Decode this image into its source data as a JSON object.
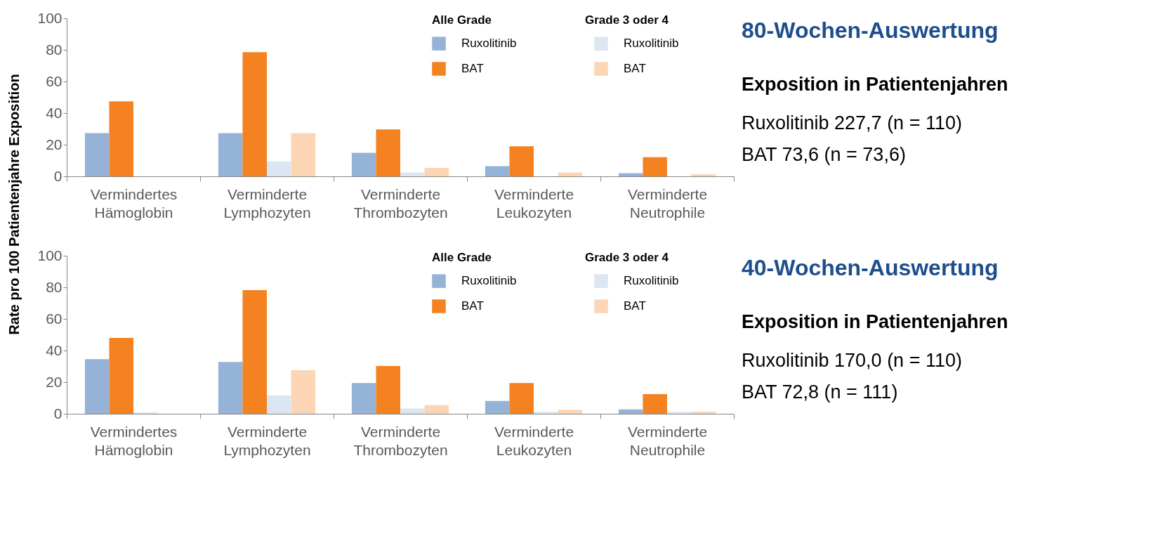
{
  "chart_data": [
    {
      "type": "bar",
      "title": "80-Wochen-Auswertung",
      "subtitle": "Exposition in Patientenjahren",
      "ylabel": "Rate pro 100 Patientenjahre Exposition",
      "categories": [
        "Vermindertes\nHämoglobin",
        "Verminderte\nLymphozyten",
        "Verminderte\nThrombozyten",
        "Verminderte\nLeukozyten",
        "Verminderte\nNeutrophile"
      ],
      "series": [
        {
          "name": "Ruxolitinib",
          "color": "#95b3d7",
          "values": [
            27.3,
            27.3,
            14.9,
            6.4,
            2.0
          ]
        },
        {
          "name": "BAT",
          "color": "#f58220",
          "values": [
            47.4,
            78.6,
            29.7,
            19.0,
            12.1
          ]
        },
        {
          "name": "Ruxolitinib",
          "color": "#dce6f2",
          "values": [
            null,
            9.5,
            2.5,
            null,
            0
          ]
        },
        {
          "name": "BAT",
          "color": "#fcd5b4",
          "values": [
            0,
            27.3,
            5.3,
            2.5,
            1.3
          ]
        }
      ],
      "ylim": [
        0,
        100
      ],
      "yticks": [
        0,
        20,
        40,
        60,
        80,
        100
      ],
      "legend": "top right",
      "legend_title": "Alle Grade",
      "annotations": [
        "Grade 3 oder 4",
        "Ruxolitinib 227,7 (n = 110)",
        "BAT 73,6 (n = 73,6)"
      ]
    },
    {
      "type": "bar",
      "title": "40-Wochen-Auswertung",
      "subtitle": "Exposition in Patientenjahren",
      "categories": [
        "Vermindertes\nHämoglobin",
        "Verminderte\nLymphozyten",
        "Verminderte\nThrombozyten",
        "Verminderte\nLeukozyten",
        "Verminderte\nNeutrophile"
      ],
      "series": [
        {
          "name": "Ruxolitinib",
          "color": "#95b3d7",
          "values": [
            34.6,
            32.8,
            19.4,
            8.1,
            2.8
          ]
        },
        {
          "name": "BAT",
          "color": "#f58220",
          "values": [
            48.0,
            78.2,
            30.2,
            19.4,
            12.4
          ]
        },
        {
          "name": "Ruxolitinib",
          "color": "#dce6f2",
          "values": [
            0.9,
            11.7,
            3.3,
            1.2,
            1.2
          ]
        },
        {
          "name": "BAT",
          "color": "#fcd5b4",
          "values": [
            0,
            27.6,
            5.5,
            2.6,
            1.3
          ]
        }
      ],
      "ylim": [
        0,
        100
      ],
      "yticks": [
        0,
        20,
        40,
        60,
        80,
        100
      ],
      "legend": "top right",
      "legend_title": "Alle Grade",
      "annotations": [
        "Grade 3 oder 4",
        "Ruxolitinib 170,0 (n = 110)",
        "BAT 72,8 (n = 111)"
      ]
    }
  ]
}
